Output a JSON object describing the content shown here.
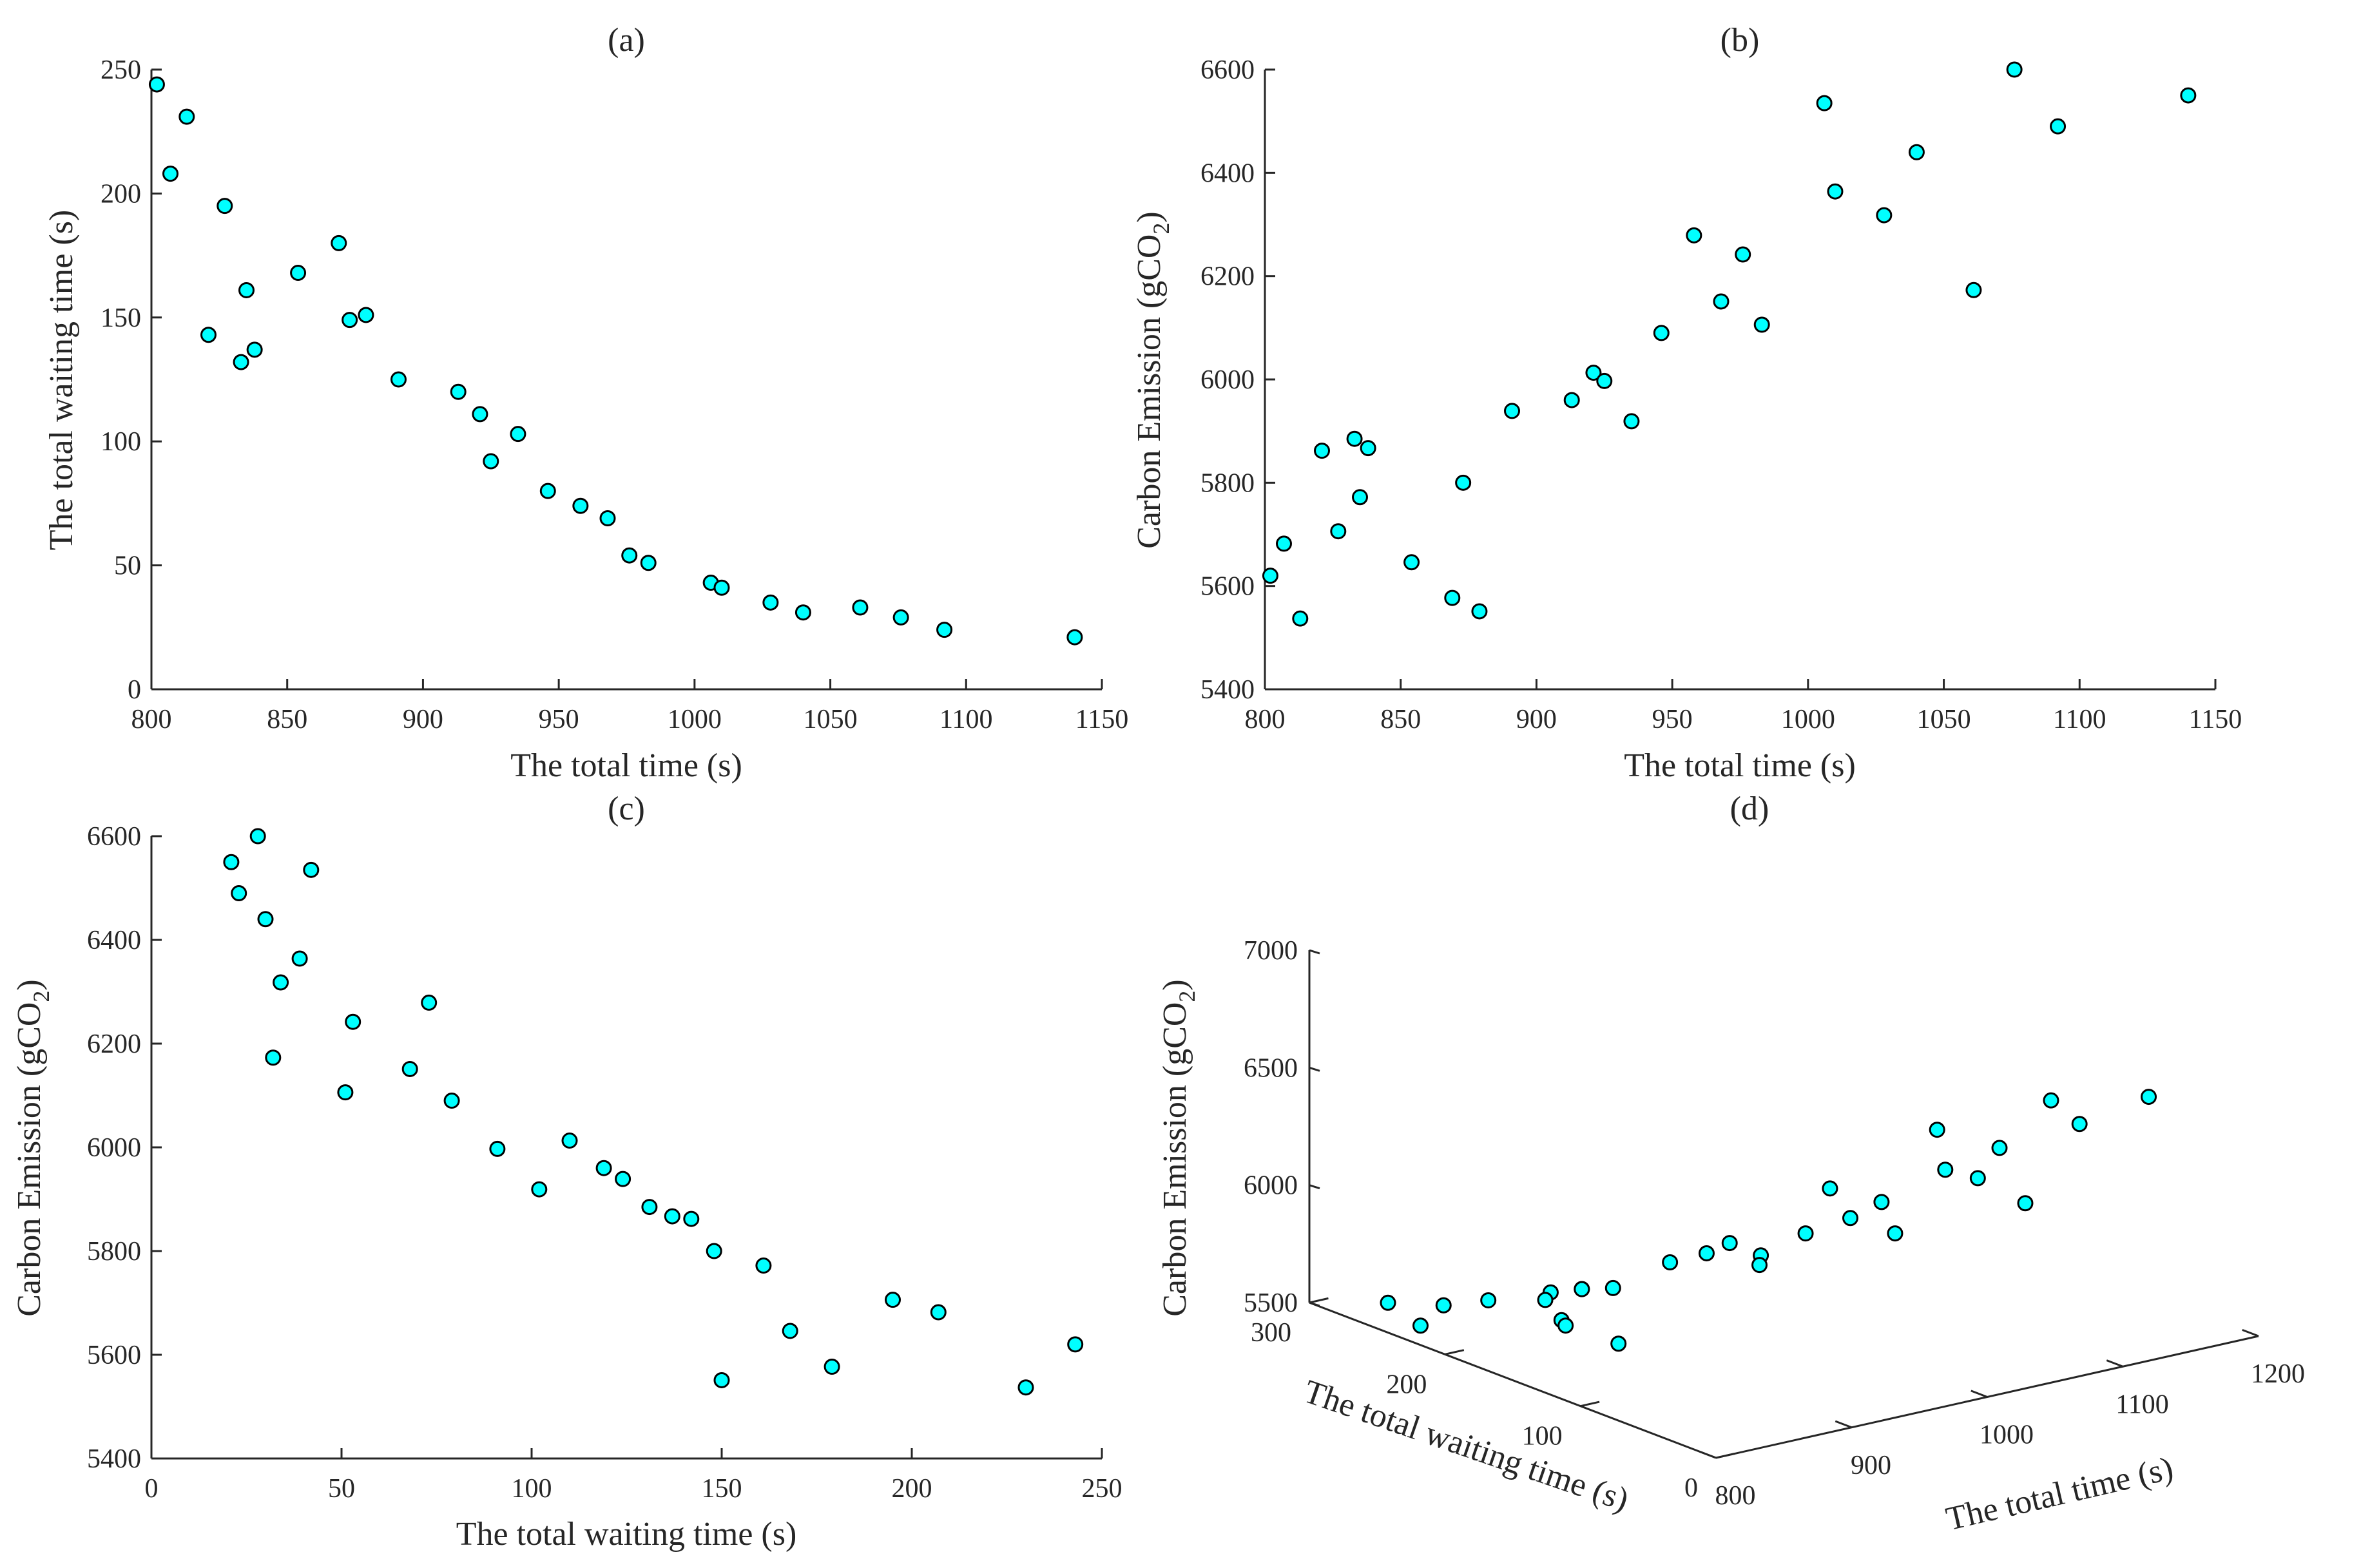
{
  "chart_data": [
    {
      "id": "a",
      "type": "scatter",
      "title": "(a)",
      "xlabel": "The total time (s)",
      "ylabel": "The total waiting time (s)",
      "xlim": [
        800,
        1150
      ],
      "ylim": [
        0,
        250
      ],
      "xticks": [
        800,
        850,
        900,
        950,
        1000,
        1050,
        1100,
        1150
      ],
      "yticks": [
        0,
        50,
        100,
        150,
        200,
        250
      ],
      "marker_color": "#00FFFF",
      "points": [
        [
          802,
          244
        ],
        [
          807,
          208
        ],
        [
          813,
          231
        ],
        [
          821,
          143
        ],
        [
          827,
          195
        ],
        [
          833,
          132
        ],
        [
          835,
          161
        ],
        [
          838,
          137
        ],
        [
          854,
          168
        ],
        [
          869,
          180
        ],
        [
          873,
          149
        ],
        [
          879,
          151
        ],
        [
          891,
          125
        ],
        [
          913,
          120
        ],
        [
          921,
          111
        ],
        [
          925,
          92
        ],
        [
          935,
          103
        ],
        [
          946,
          80
        ],
        [
          958,
          74
        ],
        [
          968,
          69
        ],
        [
          976,
          54
        ],
        [
          983,
          51
        ],
        [
          1006,
          43
        ],
        [
          1010,
          41
        ],
        [
          1028,
          35
        ],
        [
          1040,
          31
        ],
        [
          1061,
          33
        ],
        [
          1076,
          29
        ],
        [
          1092,
          24
        ],
        [
          1140,
          21
        ]
      ]
    },
    {
      "id": "b",
      "type": "scatter",
      "title": "(b)",
      "xlabel": "The total time (s)",
      "ylabel": "Carbon Emission (gCO",
      "ylabel_sub": "2",
      "ylabel_end": ")",
      "xlim": [
        800,
        1150
      ],
      "ylim": [
        5400,
        6600
      ],
      "xticks": [
        800,
        850,
        900,
        950,
        1000,
        1050,
        1100,
        1150
      ],
      "yticks": [
        5400,
        5600,
        5800,
        6000,
        6200,
        6400,
        6600
      ],
      "marker_color": "#00FFFF",
      "points": [
        [
          802,
          5620
        ],
        [
          807,
          5682
        ],
        [
          813,
          5537
        ],
        [
          821,
          5862
        ],
        [
          827,
          5706
        ],
        [
          833,
          5885
        ],
        [
          835,
          5772
        ],
        [
          838,
          5867
        ],
        [
          854,
          5646
        ],
        [
          869,
          5577
        ],
        [
          873,
          5800
        ],
        [
          879,
          5551
        ],
        [
          891,
          5939
        ],
        [
          913,
          5960
        ],
        [
          921,
          6013
        ],
        [
          925,
          5997
        ],
        [
          935,
          5919
        ],
        [
          946,
          6090
        ],
        [
          958,
          6279
        ],
        [
          968,
          6151
        ],
        [
          976,
          6242
        ],
        [
          983,
          6106
        ],
        [
          1006,
          6535
        ],
        [
          1010,
          6364
        ],
        [
          1028,
          6318
        ],
        [
          1040,
          6440
        ],
        [
          1061,
          6173
        ],
        [
          1076,
          6600
        ],
        [
          1092,
          6490
        ],
        [
          1140,
          6550
        ]
      ]
    },
    {
      "id": "c",
      "type": "scatter",
      "title": "(c)",
      "xlabel": "The total waiting time (s)",
      "ylabel": "Carbon Emission (gCO",
      "ylabel_sub": "2",
      "ylabel_end": ")",
      "xlim": [
        0,
        250
      ],
      "ylim": [
        5400,
        6600
      ],
      "xticks": [
        0,
        50,
        100,
        150,
        200,
        250
      ],
      "yticks": [
        5400,
        5600,
        5800,
        6000,
        6200,
        6400,
        6600
      ],
      "marker_color": "#00FFFF",
      "points": [
        [
          21,
          6550
        ],
        [
          23,
          6490
        ],
        [
          28,
          6600
        ],
        [
          30,
          6440
        ],
        [
          32,
          6173
        ],
        [
          34,
          6318
        ],
        [
          39,
          6364
        ],
        [
          42,
          6535
        ],
        [
          51,
          6106
        ],
        [
          53,
          6242
        ],
        [
          68,
          6151
        ],
        [
          73,
          6279
        ],
        [
          79,
          6090
        ],
        [
          91,
          5997
        ],
        [
          102,
          5919
        ],
        [
          110,
          6013
        ],
        [
          119,
          5960
        ],
        [
          124,
          5939
        ],
        [
          131,
          5885
        ],
        [
          137,
          5867
        ],
        [
          142,
          5862
        ],
        [
          148,
          5800
        ],
        [
          150,
          5551
        ],
        [
          161,
          5772
        ],
        [
          168,
          5646
        ],
        [
          179,
          5577
        ],
        [
          195,
          5706
        ],
        [
          207,
          5682
        ],
        [
          230,
          5537
        ],
        [
          243,
          5620
        ]
      ]
    },
    {
      "id": "d",
      "type": "scatter3d",
      "title": "(d)",
      "xlabel": "The total time (s)",
      "ylabel": "The total waiting time (s)",
      "zlabel": "Carbon Emission (gCO",
      "zlabel_sub": "2",
      "zlabel_end": ")",
      "xlim": [
        800,
        1200
      ],
      "ylim": [
        0,
        300
      ],
      "zlim": [
        5500,
        7000
      ],
      "xticks": [
        800,
        900,
        1000,
        1100,
        1200
      ],
      "yticks": [
        0,
        100,
        200,
        300
      ],
      "zticks": [
        5500,
        6000,
        6500,
        7000
      ],
      "marker_color": "#00FFFF",
      "points": [
        [
          802,
          244,
          5620
        ],
        [
          807,
          208,
          5682
        ],
        [
          813,
          231,
          5537
        ],
        [
          821,
          143,
          5862
        ],
        [
          827,
          195,
          5706
        ],
        [
          833,
          132,
          5885
        ],
        [
          835,
          161,
          5772
        ],
        [
          838,
          137,
          5867
        ],
        [
          854,
          168,
          5646
        ],
        [
          869,
          180,
          5577
        ],
        [
          873,
          149,
          5800
        ],
        [
          879,
          151,
          5551
        ],
        [
          891,
          125,
          5939
        ],
        [
          913,
          120,
          5960
        ],
        [
          921,
          111,
          6013
        ],
        [
          925,
          92,
          5997
        ],
        [
          935,
          103,
          5919
        ],
        [
          946,
          80,
          6090
        ],
        [
          958,
          74,
          6279
        ],
        [
          968,
          69,
          6151
        ],
        [
          976,
          54,
          6242
        ],
        [
          983,
          51,
          6106
        ],
        [
          1006,
          43,
          6535
        ],
        [
          1010,
          41,
          6364
        ],
        [
          1028,
          35,
          6318
        ],
        [
          1040,
          31,
          6440
        ],
        [
          1061,
          33,
          6173
        ],
        [
          1076,
          29,
          6600
        ],
        [
          1092,
          24,
          6490
        ],
        [
          1140,
          21,
          6550
        ]
      ]
    }
  ]
}
